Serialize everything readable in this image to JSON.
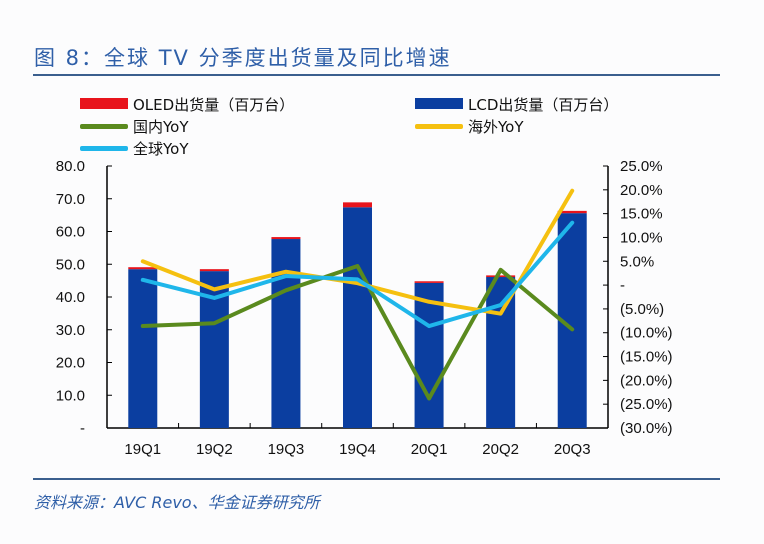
{
  "title": "图 8：全球 TV 分季度出货量及同比增速",
  "source": "资料来源：AVC Revo、华金证券研究所",
  "chart_data": {
    "type": "bar",
    "title": "图 8：全球 TV 分季度出货量及同比增速",
    "categories": [
      "19Q1",
      "19Q2",
      "19Q3",
      "19Q4",
      "20Q1",
      "20Q2",
      "20Q3"
    ],
    "stacked_bars": [
      {
        "name": "LCD出货量（百万台）",
        "color": "#0b3ea0",
        "values": [
          48.5,
          47.9,
          57.7,
          67.4,
          44.3,
          46.1,
          65.6
        ]
      },
      {
        "name": "OLED出货量（百万台）",
        "color": "#e8141c",
        "values": [
          0.6,
          0.6,
          0.6,
          1.5,
          0.5,
          0.5,
          0.7
        ]
      }
    ],
    "lines": [
      {
        "name": "国内YoY",
        "color": "#5a8a1e",
        "values": [
          -8.6,
          -8.0,
          -1.1,
          4.0,
          -23.8,
          3.2,
          -9.3
        ]
      },
      {
        "name": "海外YoY",
        "color": "#f5c010",
        "values": [
          5.0,
          -0.9,
          2.8,
          0.4,
          -3.5,
          -6.0,
          19.8
        ]
      },
      {
        "name": "全球YoY",
        "color": "#1fb6ea",
        "values": [
          1.1,
          -2.7,
          1.9,
          1.2,
          -8.6,
          -4.2,
          13.1
        ]
      }
    ],
    "y_left": {
      "ylim": [
        0,
        80
      ],
      "ticks": [
        "80.0",
        "70.0",
        "60.0",
        "50.0",
        "40.0",
        "30.0",
        "20.0",
        "10.0",
        "-"
      ]
    },
    "y_right": {
      "ylim": [
        -30,
        25
      ],
      "unit": "%",
      "ticks": [
        "25.0%",
        "20.0%",
        "15.0%",
        "10.0%",
        "5.0%",
        "-",
        "(5.0%)",
        "(10.0%)",
        "(15.0%)",
        "(20.0%)",
        "(25.0%)",
        "(30.0%)"
      ],
      "negative_color": "#e8141c"
    },
    "legend": "top",
    "grid": false
  }
}
